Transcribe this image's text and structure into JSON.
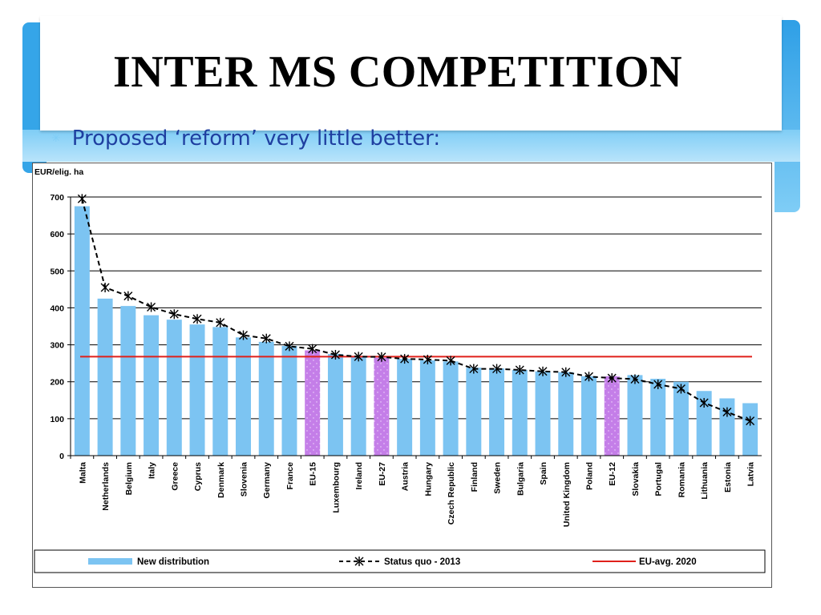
{
  "slide": {
    "title": "INTER MS COMPETITION",
    "bullet": "Proposed ‘reform’ very little better:",
    "bullet_marker": "✳"
  },
  "colors": {
    "bar": "#7cc4f2",
    "bar_highlight": "#c47ee8",
    "eu_avg_line": "#e0201a",
    "status_quo_line": "#000000",
    "accent_blue": "#35a5e8"
  },
  "chart_data": {
    "type": "bar",
    "ylabel": "EUR/elig. ha",
    "ylim": [
      0,
      700
    ],
    "yticks": [
      0,
      100,
      200,
      300,
      400,
      500,
      600,
      700
    ],
    "grid": true,
    "categories": [
      "Malta",
      "Netherlands",
      "Belgium",
      "Italy",
      "Greece",
      "Cyprus",
      "Denmark",
      "Slovenia",
      "Germany",
      "France",
      "EU-15",
      "Luxembourg",
      "Ireland",
      "EU-27",
      "Austria",
      "Hungary",
      "Czech Republic",
      "Finland",
      "Sweden",
      "Bulgaria",
      "Spain",
      "United Kingdom",
      "Poland",
      "EU-12",
      "Slovakia",
      "Portugal",
      "Romania",
      "Lithuania",
      "Estonia",
      "Latvia"
    ],
    "highlighted_categories": [
      "EU-15",
      "EU-27",
      "EU-12"
    ],
    "series": [
      {
        "name": "New distribution",
        "kind": "bar",
        "values": [
          675,
          425,
          405,
          380,
          368,
          355,
          348,
          320,
          308,
          297,
          285,
          275,
          268,
          265,
          262,
          258,
          255,
          238,
          236,
          232,
          228,
          226,
          215,
          215,
          218,
          208,
          200,
          175,
          155,
          142
        ]
      },
      {
        "name": "Status quo - 2013",
        "kind": "dashed-line-markers",
        "values": [
          695,
          455,
          432,
          402,
          383,
          370,
          360,
          326,
          317,
          296,
          289,
          273,
          268,
          267,
          262,
          260,
          257,
          235,
          235,
          232,
          228,
          226,
          214,
          210,
          207,
          193,
          181,
          143,
          118,
          94
        ]
      },
      {
        "name": "EU-avg. 2020",
        "kind": "reference-line",
        "value": 268
      }
    ],
    "legend_placement": "bottom"
  }
}
